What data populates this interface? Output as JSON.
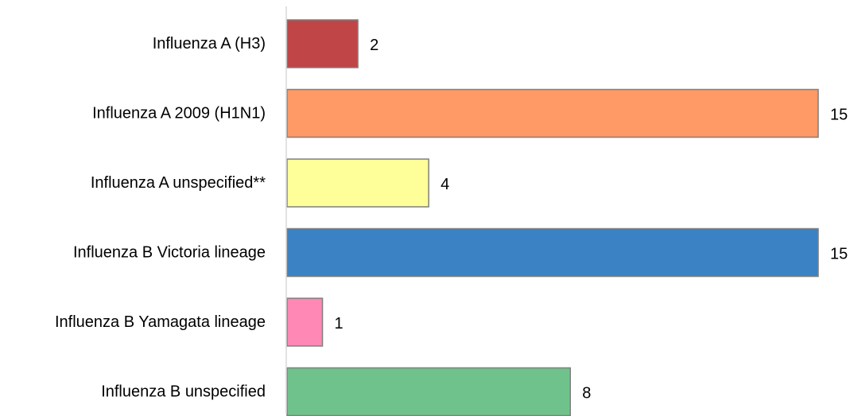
{
  "chart_data": {
    "type": "bar",
    "orientation": "horizontal",
    "categories": [
      "Influenza A (H3)",
      "Influenza A 2009 (H1N1)",
      "Influenza A unspecified**",
      "Influenza B Victoria lineage",
      "Influenza B Yamagata lineage",
      "Influenza B unspecified"
    ],
    "values": [
      2,
      15,
      4,
      15,
      1,
      8
    ],
    "colors": [
      "#c04546",
      "#ff9966",
      "#ffff99",
      "#3a82c4",
      "#ff88b4",
      "#70c28c"
    ],
    "xlim": [
      0,
      15
    ],
    "grid": false,
    "legend": "none",
    "data_labels": true,
    "title": "",
    "xlabel": "",
    "ylabel": ""
  }
}
